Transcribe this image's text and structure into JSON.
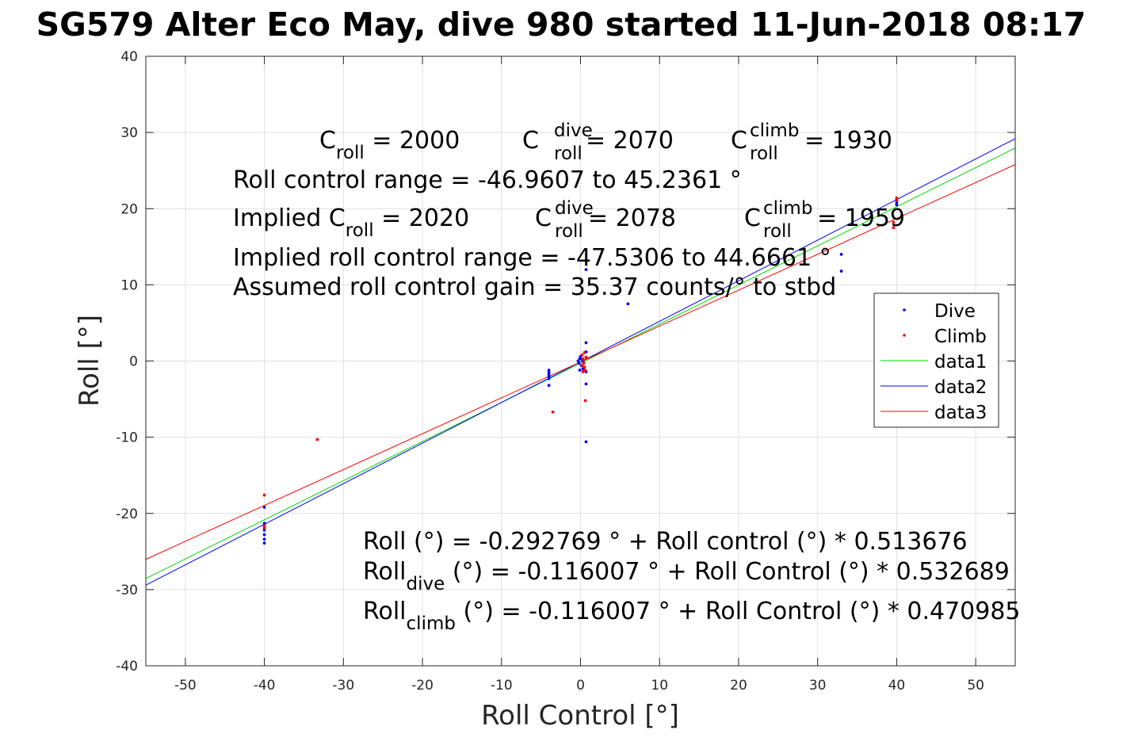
{
  "chart_data": {
    "type": "scatter",
    "title": "SG579 Alter Eco May, dive 980 started 11-Jun-2018 08:17",
    "xlabel": "Roll Control [°]",
    "ylabel": "Roll [°]",
    "xlim": [
      -55,
      55
    ],
    "ylim": [
      -40,
      40
    ],
    "xticks": [
      -50,
      -40,
      -30,
      -20,
      -10,
      0,
      10,
      20,
      30,
      40,
      50
    ],
    "yticks": [
      -40,
      -30,
      -20,
      -10,
      0,
      10,
      20,
      30,
      40
    ],
    "grid": true,
    "legend_placement": "right",
    "colors": {
      "dive": "#0000ff",
      "climb": "#ff0000",
      "data1": "#00dd00",
      "data2": "#0000ff",
      "data3": "#ff0000",
      "axis": "#262626",
      "grid": "#e0e0e0"
    },
    "series": [
      {
        "name": "Dive",
        "style": "points",
        "points": [
          [
            -40,
            -19.2
          ],
          [
            -40,
            -21.3
          ],
          [
            -40,
            -21.6
          ],
          [
            -40,
            -21.9
          ],
          [
            -40,
            -22.2
          ],
          [
            -40,
            -22.8
          ],
          [
            -40,
            -23.4
          ],
          [
            -40,
            -23.9
          ],
          [
            -4,
            -1.2
          ],
          [
            -4,
            -1.5
          ],
          [
            -4,
            -1.8
          ],
          [
            -4,
            -2.0
          ],
          [
            -4,
            -2.3
          ],
          [
            -4,
            -3.2
          ],
          [
            -0.3,
            0.0
          ],
          [
            -0.2,
            -0.3
          ],
          [
            -0.1,
            0.3
          ],
          [
            0.0,
            0.6
          ],
          [
            0.1,
            -0.6
          ],
          [
            0.2,
            0.2
          ],
          [
            0.3,
            -1.0
          ],
          [
            0.4,
            -0.2
          ],
          [
            -0.1,
            -1.2
          ],
          [
            0.7,
            2.4
          ],
          [
            0.7,
            1.2
          ],
          [
            0.7,
            -1.4
          ],
          [
            0.7,
            -3.0
          ],
          [
            0.7,
            12.0
          ],
          [
            0.7,
            -10.6
          ],
          [
            6,
            7.5
          ],
          [
            33,
            14.0
          ],
          [
            33,
            11.8
          ],
          [
            40,
            20.5
          ],
          [
            40,
            20.8
          ],
          [
            40,
            21.1
          ]
        ]
      },
      {
        "name": "Climb",
        "style": "points",
        "points": [
          [
            -40,
            -17.6
          ],
          [
            -40,
            -21.6
          ],
          [
            -40,
            -21.9
          ],
          [
            -33.3,
            -10.3
          ],
          [
            -3.5,
            -6.7
          ],
          [
            0.2,
            0.8
          ],
          [
            0.3,
            0.3
          ],
          [
            0.4,
            -0.3
          ],
          [
            0.5,
            -0.8
          ],
          [
            0.5,
            1.1
          ],
          [
            0.6,
            -1.2
          ],
          [
            0.3,
            -1.4
          ],
          [
            0.7,
            0.5
          ],
          [
            0.2,
            -0.6
          ],
          [
            0.6,
            -5.2
          ],
          [
            39.6,
            17.5
          ],
          [
            39.6,
            18.2
          ],
          [
            40,
            21.1
          ],
          [
            40,
            21.4
          ]
        ]
      },
      {
        "name": "data1",
        "style": "line",
        "x": [
          -55,
          55
        ],
        "intercept": -0.292769,
        "slope": 0.513676
      },
      {
        "name": "data2",
        "style": "line",
        "x": [
          -55,
          55
        ],
        "intercept": -0.116007,
        "slope": 0.532689
      },
      {
        "name": "data3",
        "style": "line",
        "x": [
          -55,
          55
        ],
        "intercept": -0.116007,
        "slope": 0.470985
      }
    ],
    "annotations": {
      "c_roll": {
        "base": "C",
        "sub": "roll",
        "rest": " = 2000"
      },
      "c_roll_dive": {
        "base": "C",
        "sup": "dive",
        "sub": "roll",
        "rest": " = 2070"
      },
      "c_roll_climb": {
        "base": "C",
        "sup": "climb",
        "sub": "roll",
        "rest": " = 1930"
      },
      "range": "Roll control range = -46.9607 to 45.2361 °",
      "implied_c_roll": {
        "base": "Implied C",
        "sub": "roll",
        "rest": " = 2020"
      },
      "implied_c_roll_dive": {
        "base": "C",
        "sup": "dive",
        "sub": "roll",
        "rest": " = 2078"
      },
      "implied_c_roll_climb": {
        "base": "C",
        "sup": "climb",
        "sub": "roll",
        "rest": " = 1959"
      },
      "implied_range": "Implied roll control range = -47.5306 to 44.6661 °",
      "gain": "Assumed roll control gain = 35.37 counts/° to stbd",
      "fit_all": "Roll (°) = -0.292769 ° + Roll control (°) * 0.513676",
      "fit_dive": {
        "base": "Roll",
        "sub": "dive",
        "rest": " (°) = -0.116007 ° + Roll Control (°) * 0.532689"
      },
      "fit_climb": {
        "base": "Roll",
        "sub": "climb",
        "rest": " (°) = -0.116007 ° + Roll Control (°) * 0.470985"
      }
    }
  }
}
